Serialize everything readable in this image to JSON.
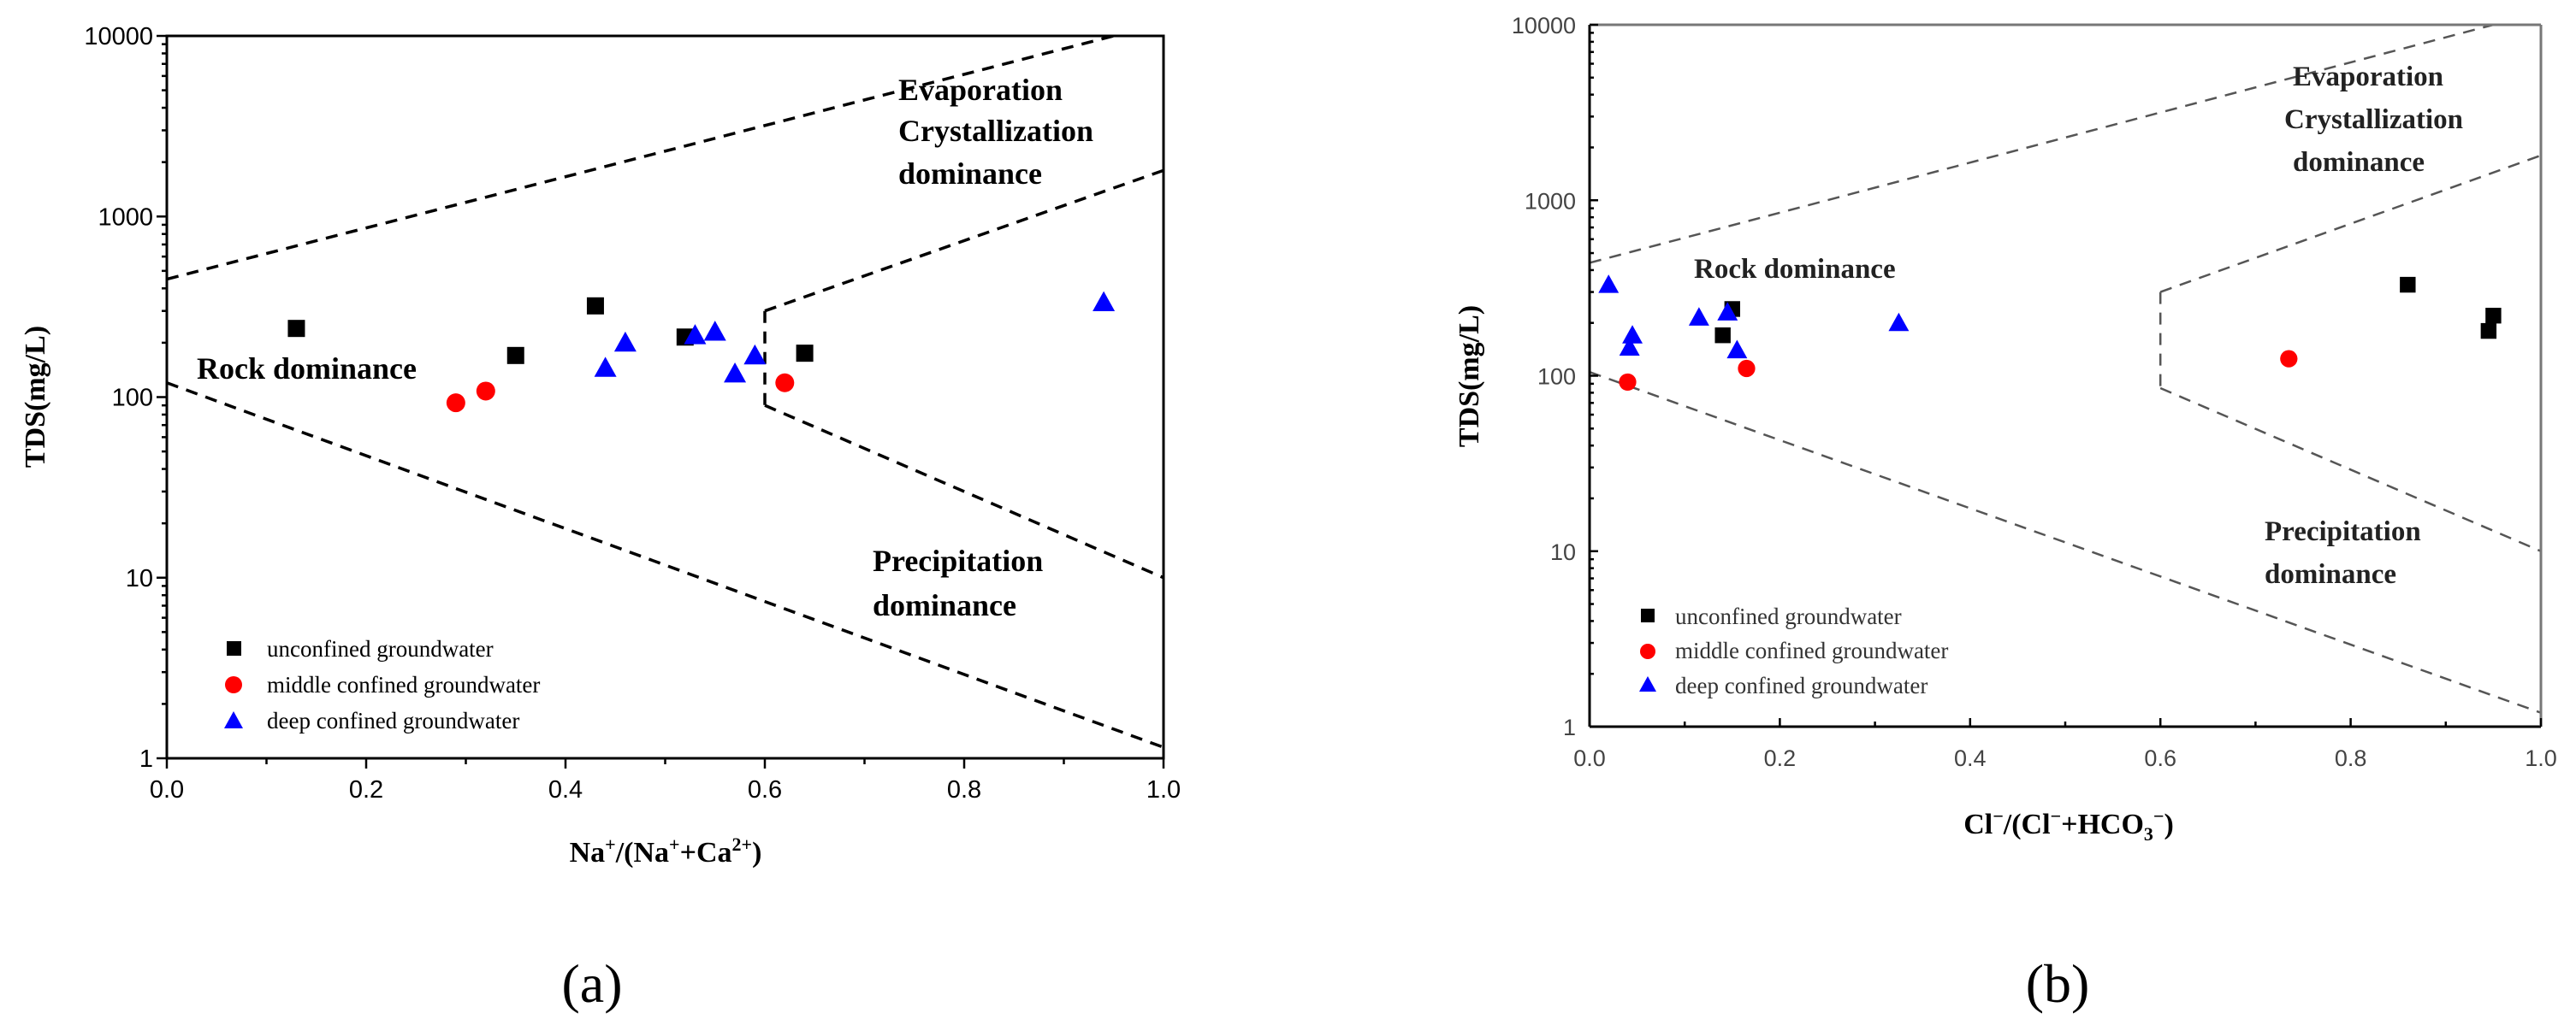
{
  "chart_data": [
    {
      "type": "scatter",
      "panel_label": "(a)",
      "title": "",
      "xlabel_parts": [
        "Na",
        "+",
        "/(Na",
        "+",
        "+Ca",
        "2+",
        ")"
      ],
      "ylabel": "TDS(mg/L)",
      "xlim": [
        0,
        1.0
      ],
      "ylim": [
        1,
        10000
      ],
      "yscale": "log",
      "xticks": [
        0.0,
        0.2,
        0.4,
        0.6,
        0.8,
        1.0
      ],
      "xtick_labels": [
        "0.0",
        "0.2",
        "0.4",
        "0.6",
        "0.8",
        "1.0"
      ],
      "yticks": [
        1,
        10,
        100,
        1000,
        10000
      ],
      "ytick_labels": [
        "1",
        "10",
        "100",
        "1000",
        "10000"
      ],
      "annotations": [
        "Evaporation",
        "Crystallization",
        "dominance",
        "Rock dominance",
        "Precipitation",
        "dominance"
      ],
      "boundaries": [
        {
          "name": "upper",
          "points": [
            [
              0,
              450
            ],
            [
              0.95,
              10000
            ]
          ]
        },
        {
          "name": "lower",
          "points": [
            [
              0,
              120
            ],
            [
              1.0,
              1.15
            ]
          ]
        },
        {
          "name": "right-upper",
          "points": [
            [
              0.6,
              300
            ],
            [
              1.0,
              1800
            ]
          ]
        },
        {
          "name": "right-vertical",
          "points": [
            [
              0.6,
              300
            ],
            [
              0.6,
              90
            ]
          ]
        },
        {
          "name": "right-lower",
          "points": [
            [
              0.6,
              90
            ],
            [
              1.0,
              10
            ]
          ]
        }
      ],
      "series": [
        {
          "name": "unconfined groundwater",
          "marker": "square",
          "color": "#000000",
          "x": [
            0.13,
            0.35,
            0.43,
            0.52,
            0.64
          ],
          "y": [
            240,
            170,
            320,
            215,
            175
          ]
        },
        {
          "name": "middle confined groundwater",
          "marker": "circle",
          "color": "#ff0000",
          "x": [
            0.29,
            0.32,
            0.62
          ],
          "y": [
            93,
            108,
            120
          ]
        },
        {
          "name": "deep confined groundwater",
          "marker": "triangle",
          "color": "#0000ff",
          "x": [
            0.44,
            0.46,
            0.53,
            0.55,
            0.57,
            0.59,
            0.94
          ],
          "y": [
            145,
            200,
            220,
            230,
            135,
            170,
            335
          ]
        }
      ]
    },
    {
      "type": "scatter",
      "panel_label": "(b)",
      "title": "",
      "xlabel_parts": [
        "Cl",
        "−",
        "/(Cl",
        "−",
        "+HCO",
        "3",
        "−",
        ")"
      ],
      "ylabel": "TDS(mg/L)",
      "xlim": [
        0,
        1.0
      ],
      "ylim": [
        1,
        10000
      ],
      "yscale": "log",
      "xticks": [
        0.0,
        0.2,
        0.4,
        0.6,
        0.8,
        1.0
      ],
      "xtick_labels": [
        "0.0",
        "0.2",
        "0.4",
        "0.6",
        "0.8",
        "1.0"
      ],
      "yticks": [
        1,
        10,
        100,
        1000,
        10000
      ],
      "ytick_labels": [
        "1",
        "10",
        "100",
        "1000",
        "10000"
      ],
      "annotations": [
        "Evaporation",
        "Crystallization",
        "dominance",
        "Rock dominance",
        "Precipitation",
        "dominance"
      ],
      "boundaries": [
        {
          "name": "upper",
          "points": [
            [
              0,
              440
            ],
            [
              0.95,
              10000
            ]
          ]
        },
        {
          "name": "lower",
          "points": [
            [
              0,
              105
            ],
            [
              1.0,
              1.2
            ]
          ]
        },
        {
          "name": "right-upper",
          "points": [
            [
              0.6,
              300
            ],
            [
              1.0,
              1800
            ]
          ]
        },
        {
          "name": "right-vertical",
          "points": [
            [
              0.6,
              300
            ],
            [
              0.6,
              85
            ]
          ]
        },
        {
          "name": "right-lower",
          "points": [
            [
              0.6,
              85
            ],
            [
              1.0,
              10
            ]
          ]
        }
      ],
      "series": [
        {
          "name": "unconfined groundwater",
          "marker": "square",
          "color": "#000000",
          "x": [
            0.14,
            0.15,
            0.86,
            0.945,
            0.95
          ],
          "y": [
            170,
            240,
            330,
            180,
            220
          ]
        },
        {
          "name": "middle confined groundwater",
          "marker": "circle",
          "color": "#ff0000",
          "x": [
            0.04,
            0.165,
            0.735
          ],
          "y": [
            92,
            110,
            125
          ]
        },
        {
          "name": "deep confined groundwater",
          "marker": "triangle",
          "color": "#0000ff",
          "x": [
            0.02,
            0.042,
            0.045,
            0.115,
            0.145,
            0.155,
            0.325
          ],
          "y": [
            330,
            145,
            170,
            215,
            230,
            140,
            200
          ]
        }
      ]
    }
  ]
}
